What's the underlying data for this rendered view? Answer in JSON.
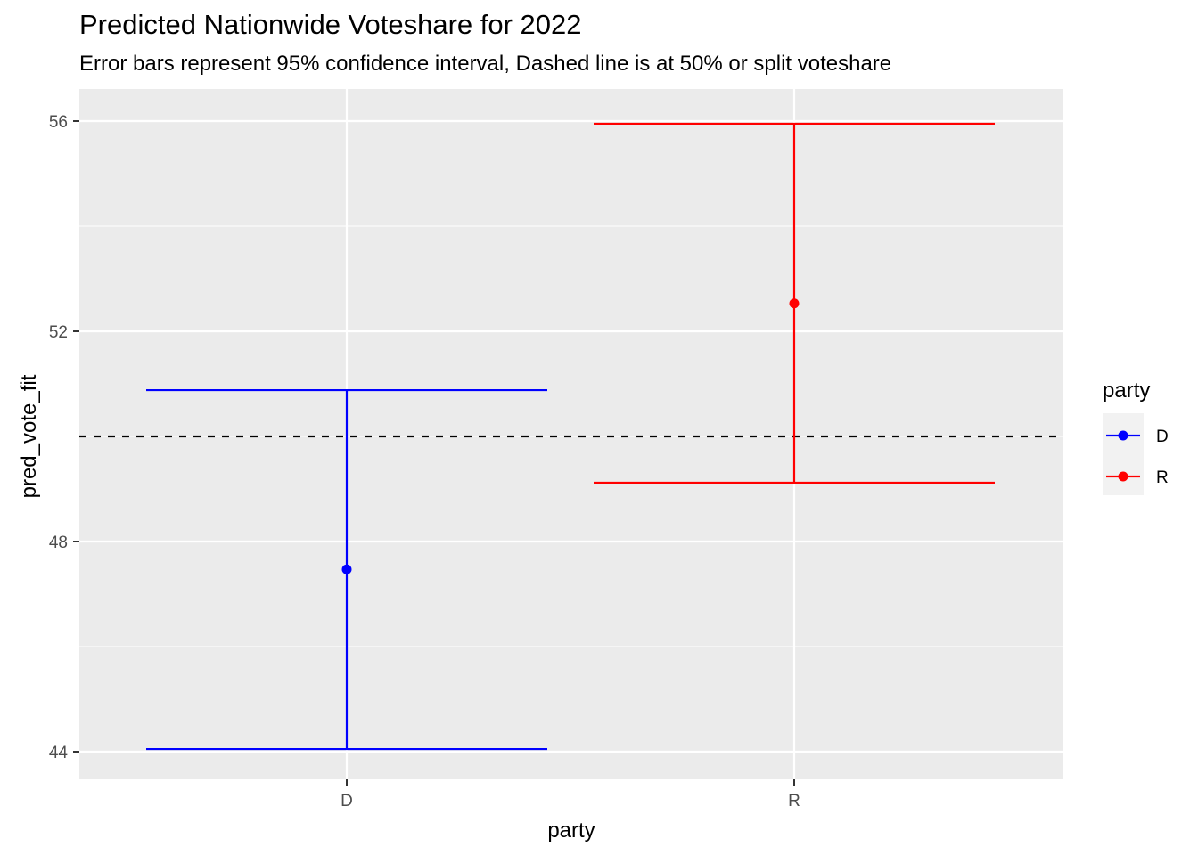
{
  "chart_data": {
    "type": "errorbar",
    "title": "Predicted Nationwide Voteshare for 2022",
    "subtitle": "Error bars represent 95% confidence interval, Dashed line is at 50% or split voteshare",
    "xlabel": "party",
    "ylabel": "pred_vote_fit",
    "categories": [
      "D",
      "R"
    ],
    "y_ticks": [
      44,
      48,
      52,
      56
    ],
    "ylim": [
      43.5,
      56.5
    ],
    "reference_line": 50,
    "grid": true,
    "legend": {
      "title": "party",
      "position": "right"
    },
    "series": [
      {
        "name": "D",
        "color": "#0000ff",
        "fit": 47.47,
        "lower": 44.05,
        "upper": 50.88
      },
      {
        "name": "R",
        "color": "#ff0000",
        "fit": 52.53,
        "lower": 49.12,
        "upper": 55.95
      }
    ]
  }
}
